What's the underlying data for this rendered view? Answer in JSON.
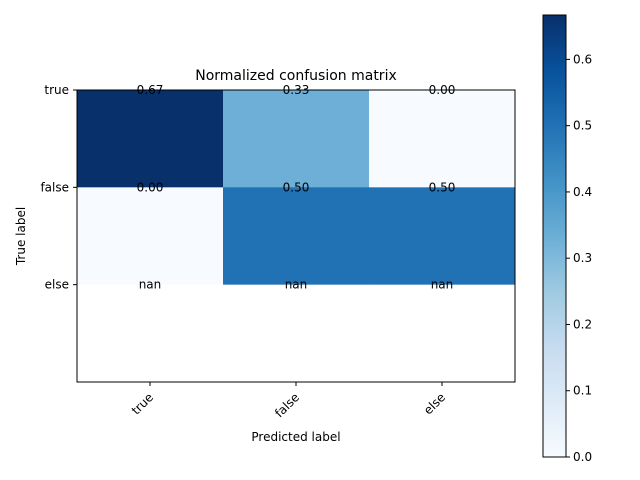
{
  "chart_data": {
    "type": "heatmap",
    "title": "Normalized confusion matrix",
    "xlabel": "Predicted label",
    "ylabel": "True label",
    "x_categories": [
      "true",
      "false",
      "else"
    ],
    "y_categories": [
      "true",
      "false",
      "else"
    ],
    "values": [
      [
        0.67,
        0.33,
        0.0
      ],
      [
        0.0,
        0.5,
        0.5
      ],
      [
        null,
        null,
        null
      ]
    ],
    "cell_labels": [
      [
        "0.67",
        "0.33",
        "0.00"
      ],
      [
        "0.00",
        "0.50",
        "0.50"
      ],
      [
        "nan",
        "nan",
        "nan"
      ]
    ],
    "colormap": "Blues",
    "colorbar": {
      "range": [
        0,
        0.667
      ],
      "ticks": [
        0.0,
        0.1,
        0.2,
        0.3,
        0.4,
        0.5,
        0.6
      ],
      "tick_labels": [
        "0.0",
        "0.1",
        "0.2",
        "0.3",
        "0.4",
        "0.5",
        "0.6"
      ]
    },
    "x_tick_rotation": 45,
    "grid": false
  }
}
